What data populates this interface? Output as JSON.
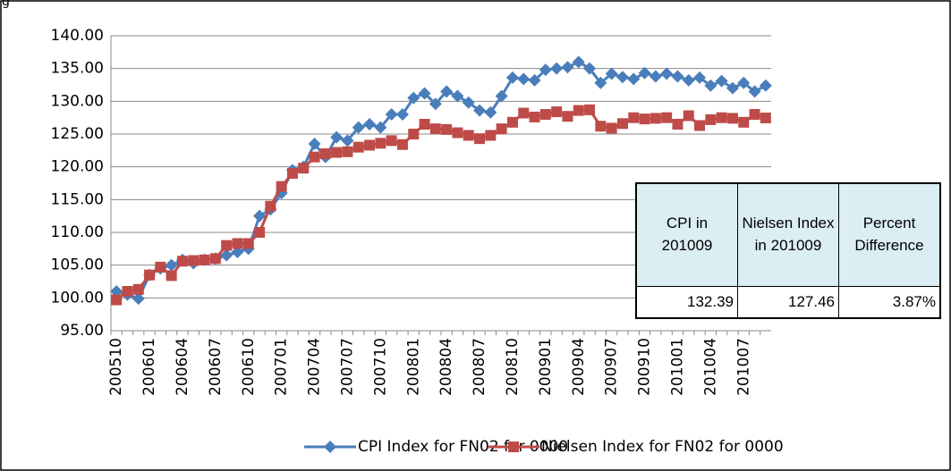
{
  "chart_data": {
    "type": "line",
    "title": "g",
    "categories": [
      "200510",
      null,
      null,
      "200601",
      null,
      null,
      "200604",
      null,
      null,
      "200607",
      null,
      null,
      "200610",
      null,
      null,
      "200701",
      null,
      null,
      "200704",
      null,
      null,
      "200707",
      null,
      null,
      "200710",
      null,
      null,
      "200801",
      null,
      null,
      "200804",
      null,
      null,
      "200807",
      null,
      null,
      "200810",
      null,
      null,
      "200901",
      null,
      null,
      "200904",
      null,
      null,
      "200907",
      null,
      null,
      "200910",
      null,
      null,
      "201001",
      null,
      null,
      "201004",
      null,
      null,
      "201007",
      null,
      null
    ],
    "series": [
      {
        "name": "CPI Index for FN02 for 0000",
        "color": "#4a7ebb",
        "marker": "diamond",
        "values": [
          101,
          100.5,
          99.9,
          103.5,
          104.5,
          105,
          105.8,
          105.3,
          105.8,
          106,
          106.5,
          107,
          107.5,
          112.5,
          113.5,
          116,
          119.5,
          120,
          123.5,
          121.5,
          124.5,
          124,
          126,
          126.5,
          126,
          128,
          128,
          130.5,
          131.2,
          129.6,
          131.5,
          130.8,
          129.8,
          128.6,
          128.3,
          130.8,
          133.6,
          133.4,
          133.2,
          134.8,
          135,
          135.2,
          136,
          135,
          132.8,
          134.2,
          133.7,
          133.4,
          134.3,
          133.8,
          134.2,
          133.8,
          133.2,
          133.6,
          132.4,
          133.1,
          132,
          132.8,
          131.5,
          132.39
        ]
      },
      {
        "name": "Nielsen Index for FN02 for 0000",
        "color": "#be4b48",
        "marker": "square",
        "values": [
          99.7,
          101,
          101.3,
          103.5,
          104.7,
          103.4,
          105.6,
          105.7,
          105.8,
          106,
          108,
          108.3,
          108.3,
          110,
          114,
          117,
          119,
          119.8,
          121.5,
          122,
          122.2,
          122.3,
          123,
          123.3,
          123.6,
          124,
          123.4,
          125,
          126.5,
          125.8,
          125.7,
          125.2,
          124.8,
          124.3,
          124.8,
          125.8,
          126.8,
          128.2,
          127.6,
          128,
          128.4,
          127.7,
          128.6,
          128.7,
          126.2,
          125.9,
          126.6,
          127.5,
          127.3,
          127.4,
          127.5,
          126.5,
          127.8,
          126.3,
          127.2,
          127.5,
          127.4,
          126.8,
          128,
          127.46
        ]
      }
    ],
    "ylim": [
      95,
      140
    ],
    "yticks": [
      {
        "value": 95,
        "label": "95.00"
      },
      {
        "value": 100,
        "label": "100.00"
      },
      {
        "value": 105,
        "label": "105.00"
      },
      {
        "value": 110,
        "label": "110.00"
      },
      {
        "value": 115,
        "label": "115.00"
      },
      {
        "value": 120,
        "label": "120.00"
      },
      {
        "value": 125,
        "label": "125.00"
      },
      {
        "value": 130,
        "label": "130.00"
      },
      {
        "value": 135,
        "label": "135.00"
      },
      {
        "value": 140,
        "label": "140.00"
      }
    ],
    "grid": true,
    "legend": "bottom",
    "table": {
      "header": [
        "CPI in 201009",
        "Nielsen Index in 201009",
        "Percent Difference"
      ],
      "rows": [
        [
          "132.39",
          "127.46",
          "3.87%"
        ]
      ]
    }
  }
}
